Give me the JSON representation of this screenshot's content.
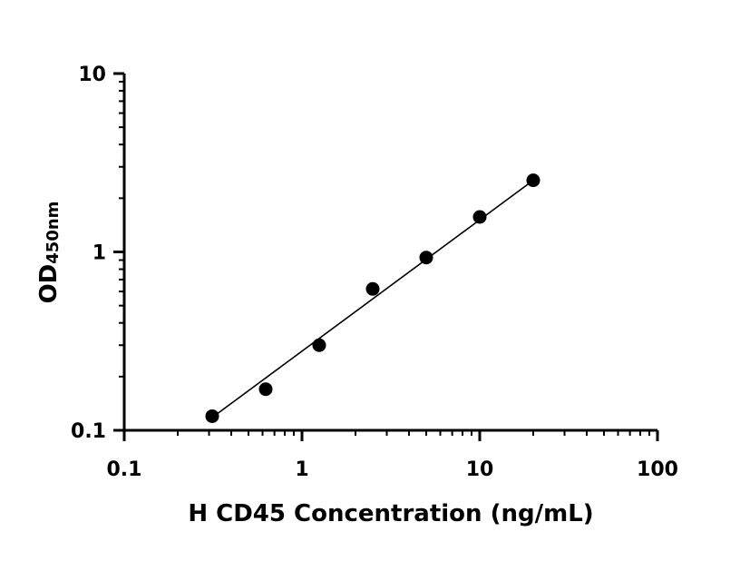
{
  "chart_data": {
    "type": "scatter",
    "title": "",
    "xlabel": "H CD45 Concentration (ng/mL)",
    "ylabel": "OD",
    "ylabel_subscript": "450nm",
    "x_scale": "log",
    "y_scale": "log",
    "xlim": [
      0.1,
      100
    ],
    "ylim": [
      0.1,
      10
    ],
    "x_ticks": [
      0.1,
      1,
      10,
      100
    ],
    "x_tick_labels": [
      "0.1",
      "1",
      "10",
      "100"
    ],
    "y_ticks": [
      0.1,
      1,
      10
    ],
    "y_tick_labels": [
      "0.1",
      "1",
      "10"
    ],
    "grid": false,
    "legend": "none",
    "series": [
      {
        "x": [
          0.3125,
          0.625,
          1.25,
          2.5,
          5,
          10,
          20
        ],
        "y": [
          0.12,
          0.17,
          0.3,
          0.62,
          0.93,
          1.57,
          2.52
        ]
      }
    ],
    "fit_line": {
      "x": [
        0.3125,
        20
      ],
      "y": [
        0.118,
        2.52
      ]
    },
    "colors": {
      "marker": "#000000",
      "line": "#000000",
      "axis": "#000000"
    }
  }
}
